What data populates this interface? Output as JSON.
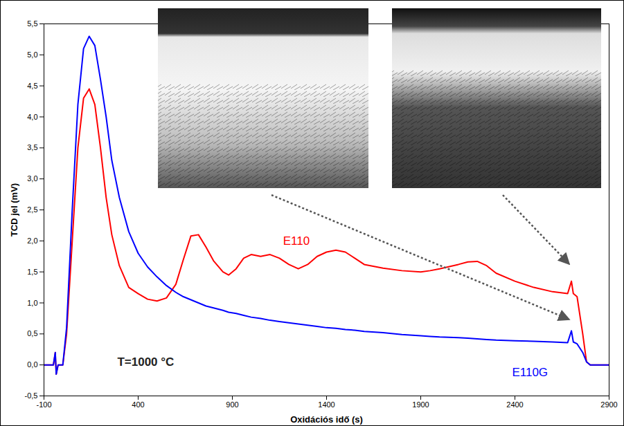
{
  "chart_data": {
    "type": "line",
    "x_label": "Oxidációs idő (s)",
    "y_label": "TCD jel (mV)",
    "x": [
      -100,
      -50,
      -40,
      -35,
      -25,
      0,
      20,
      50,
      80,
      110,
      140,
      170,
      200,
      230,
      260,
      300,
      350,
      400,
      450,
      500,
      550,
      600,
      640,
      680,
      720,
      760,
      800,
      850,
      880,
      920,
      960,
      1000,
      1050,
      1100,
      1150,
      1200,
      1250,
      1300,
      1350,
      1400,
      1450,
      1500,
      1550,
      1600,
      1700,
      1800,
      1900,
      1950,
      2000,
      2100,
      2150,
      2200,
      2250,
      2300,
      2400,
      2500,
      2600,
      2680,
      2700,
      2710,
      2730,
      2760,
      2780,
      2800,
      2900
    ],
    "series": [
      {
        "name": "E110",
        "color": "#ff0000",
        "values": [
          0,
          0,
          0.2,
          -0.15,
          0,
          0,
          0.5,
          2.0,
          3.5,
          4.3,
          4.45,
          4.2,
          3.5,
          2.7,
          2.1,
          1.6,
          1.25,
          1.15,
          1.06,
          1.03,
          1.08,
          1.3,
          1.7,
          2.08,
          2.1,
          1.9,
          1.68,
          1.5,
          1.45,
          1.55,
          1.72,
          1.78,
          1.75,
          1.78,
          1.72,
          1.62,
          1.55,
          1.62,
          1.75,
          1.82,
          1.85,
          1.82,
          1.72,
          1.62,
          1.56,
          1.52,
          1.5,
          1.52,
          1.55,
          1.62,
          1.66,
          1.67,
          1.6,
          1.48,
          1.35,
          1.25,
          1.18,
          1.15,
          1.35,
          1.15,
          1.1,
          0.5,
          0.05,
          0,
          0
        ]
      },
      {
        "name": "E110G",
        "color": "#0000ff",
        "values": [
          0,
          0,
          0.2,
          -0.15,
          0,
          0,
          0.6,
          2.5,
          4.2,
          5.1,
          5.3,
          5.15,
          4.6,
          4.0,
          3.3,
          2.7,
          2.15,
          1.8,
          1.58,
          1.42,
          1.28,
          1.17,
          1.1,
          1.05,
          1.0,
          0.95,
          0.92,
          0.88,
          0.85,
          0.83,
          0.8,
          0.77,
          0.75,
          0.72,
          0.7,
          0.68,
          0.66,
          0.64,
          0.62,
          0.6,
          0.59,
          0.57,
          0.56,
          0.54,
          0.52,
          0.49,
          0.47,
          0.46,
          0.45,
          0.44,
          0.43,
          0.42,
          0.41,
          0.4,
          0.39,
          0.38,
          0.37,
          0.36,
          0.55,
          0.37,
          0.34,
          0.2,
          0.05,
          0,
          0
        ]
      }
    ],
    "xlim": [
      -100,
      2900
    ],
    "xticks": [
      -100,
      400,
      900,
      1400,
      1900,
      2400,
      2900
    ],
    "ylim": [
      -0.5,
      5.5
    ],
    "yticks": [
      {
        "value": -0.5,
        "label": "-0,5"
      },
      {
        "value": 0,
        "label": "0,0"
      },
      {
        "value": 0.5,
        "label": "0,5"
      },
      {
        "value": 1,
        "label": "1,0"
      },
      {
        "value": 1.5,
        "label": "1,5"
      },
      {
        "value": 2,
        "label": "2,0"
      },
      {
        "value": 2.5,
        "label": "2,5"
      },
      {
        "value": 3,
        "label": "3,0"
      },
      {
        "value": 3.5,
        "label": "3,5"
      },
      {
        "value": 4,
        "label": "4,0"
      },
      {
        "value": 4.5,
        "label": "4,5"
      },
      {
        "value": 5,
        "label": "5,0"
      },
      {
        "value": 5.5,
        "label": "5,5"
      }
    ],
    "annotations": [
      {
        "text": "E110",
        "x": 1240,
        "y": 2.0
      },
      {
        "text": "E110G",
        "x": 2480,
        "y": -0.12
      },
      {
        "text": "T=1000 °C",
        "x": 440,
        "y": 0.05
      }
    ],
    "grid": false
  }
}
